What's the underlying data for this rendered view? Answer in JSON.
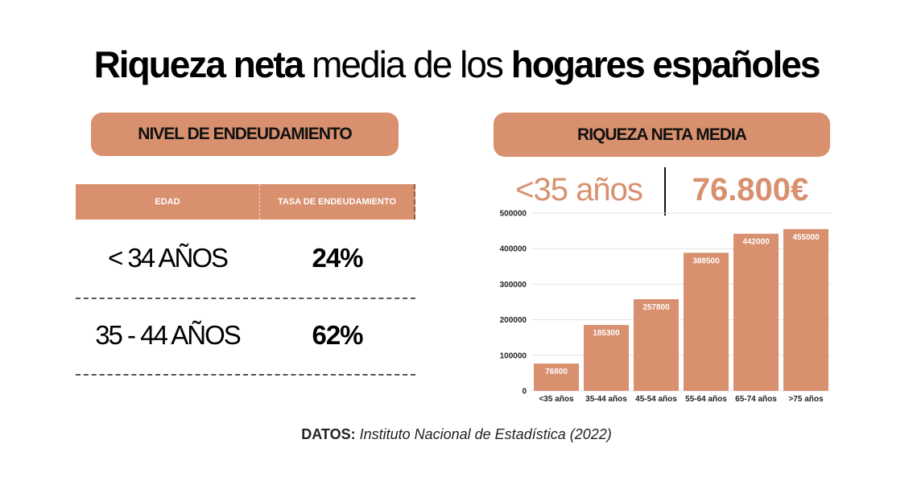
{
  "title": {
    "part1": "Riqueza neta",
    "part2": " media de los ",
    "part3": "hogares españoles"
  },
  "left_panel": {
    "heading": "NIVEL DE ENDEUDAMIENTO",
    "table": {
      "headers": [
        "EDAD",
        "TASA DE ENDEUDAMIENTO"
      ],
      "rows": [
        {
          "age": "< 34 AÑOS",
          "rate": "24%"
        },
        {
          "age": "35 - 44 AÑOS",
          "rate": "62%"
        }
      ]
    }
  },
  "right_panel": {
    "heading": "RIQUEZA NETA MEDIA",
    "highlight_group": "<35 años",
    "highlight_value": "76.800€"
  },
  "colors": {
    "accent": "#d8906e"
  },
  "chart_data": {
    "type": "bar",
    "categories": [
      "<35 años",
      "35-44 años",
      "45-54 años",
      "55-64 años",
      "65-74 años",
      ">75 años"
    ],
    "values": [
      76800,
      185300,
      257800,
      388500,
      442000,
      455000
    ],
    "data_labels": [
      "76800",
      "185300",
      "257800",
      "388500",
      "442000",
      "455000"
    ],
    "yticks": [
      "0",
      "100000",
      "200000",
      "300000",
      "400000",
      "500000"
    ],
    "ylim": [
      0,
      500000
    ],
    "grid": true,
    "legend": "none"
  },
  "source": {
    "label": "DATOS:",
    "text": " Instituto Nacional de Estadística (2022)"
  }
}
